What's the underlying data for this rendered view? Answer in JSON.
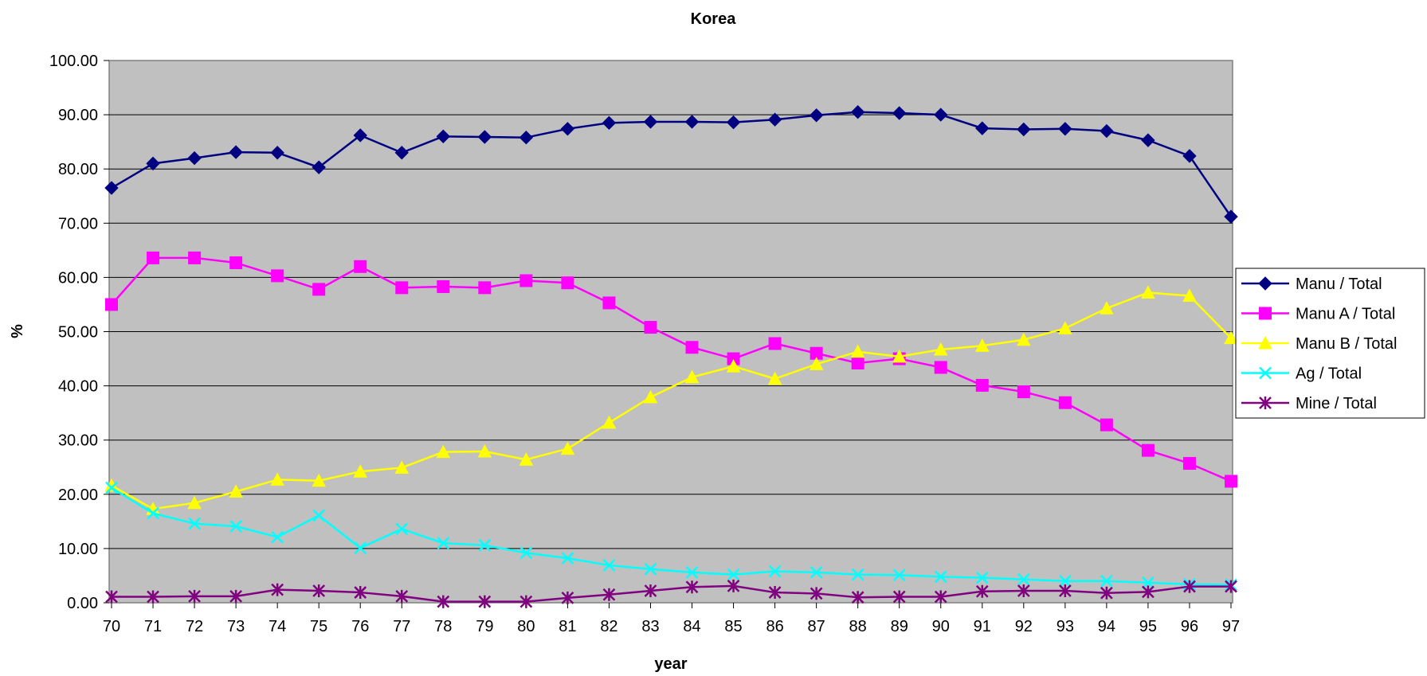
{
  "chart_data": {
    "type": "line",
    "title": "Korea",
    "xlabel": "year",
    "ylabel": "%",
    "ylim": [
      0,
      100
    ],
    "yticks": [
      "0.00",
      "10.00",
      "20.00",
      "30.00",
      "40.00",
      "50.00",
      "60.00",
      "70.00",
      "80.00",
      "90.00",
      "100.00"
    ],
    "grid": "horizontal",
    "legend_position": "right",
    "categories": [
      "70",
      "71",
      "72",
      "73",
      "74",
      "75",
      "76",
      "77",
      "78",
      "79",
      "80",
      "81",
      "82",
      "83",
      "84",
      "85",
      "86",
      "87",
      "88",
      "89",
      "90",
      "91",
      "92",
      "93",
      "94",
      "95",
      "96",
      "97"
    ],
    "series": [
      {
        "name": "Manu / Total",
        "color": "#000080",
        "marker": "diamond",
        "values": [
          76.5,
          81.0,
          82.0,
          83.1,
          83.0,
          80.3,
          86.2,
          83.0,
          86.0,
          85.9,
          85.8,
          87.4,
          88.5,
          88.7,
          88.7,
          88.6,
          89.1,
          89.9,
          90.5,
          90.3,
          90.0,
          87.5,
          87.3,
          87.4,
          87.0,
          85.3,
          82.4,
          71.2
        ]
      },
      {
        "name": "Manu A / Total",
        "color": "#FF00FF",
        "marker": "square",
        "values": [
          55.0,
          63.6,
          63.6,
          62.7,
          60.3,
          57.8,
          62.0,
          58.1,
          58.3,
          58.1,
          59.4,
          59.0,
          55.3,
          50.8,
          47.1,
          45.0,
          47.8,
          46.0,
          44.2,
          45.0,
          43.4,
          40.1,
          38.9,
          36.9,
          32.8,
          28.1,
          25.7,
          22.4
        ]
      },
      {
        "name": "Manu B / Total",
        "color": "#FFFF00",
        "marker": "triangle",
        "values": [
          21.6,
          17.3,
          18.4,
          20.5,
          22.7,
          22.5,
          24.2,
          24.9,
          27.8,
          27.9,
          26.4,
          28.4,
          33.2,
          37.9,
          41.6,
          43.6,
          41.3,
          44.0,
          46.3,
          45.4,
          46.7,
          47.4,
          48.5,
          50.6,
          54.3,
          57.2,
          56.6,
          48.8
        ]
      },
      {
        "name": "Ag / Total",
        "color": "#00FFFF",
        "marker": "x",
        "values": [
          21.2,
          16.5,
          14.6,
          14.1,
          12.1,
          16.1,
          10.1,
          13.6,
          11.0,
          10.6,
          9.2,
          8.2,
          6.9,
          6.2,
          5.6,
          5.2,
          5.8,
          5.6,
          5.2,
          5.1,
          4.8,
          4.6,
          4.3,
          4.0,
          4.0,
          3.7,
          3.4,
          3.3
        ]
      },
      {
        "name": "Mine / Total",
        "color": "#800080",
        "marker": "star",
        "values": [
          1.1,
          1.1,
          1.2,
          1.2,
          2.4,
          2.2,
          1.9,
          1.2,
          0.2,
          0.2,
          0.2,
          0.9,
          1.5,
          2.2,
          2.9,
          3.1,
          1.9,
          1.7,
          1.0,
          1.1,
          1.1,
          2.1,
          2.2,
          2.2,
          1.8,
          2.0,
          3.0,
          3.0
        ]
      }
    ]
  }
}
